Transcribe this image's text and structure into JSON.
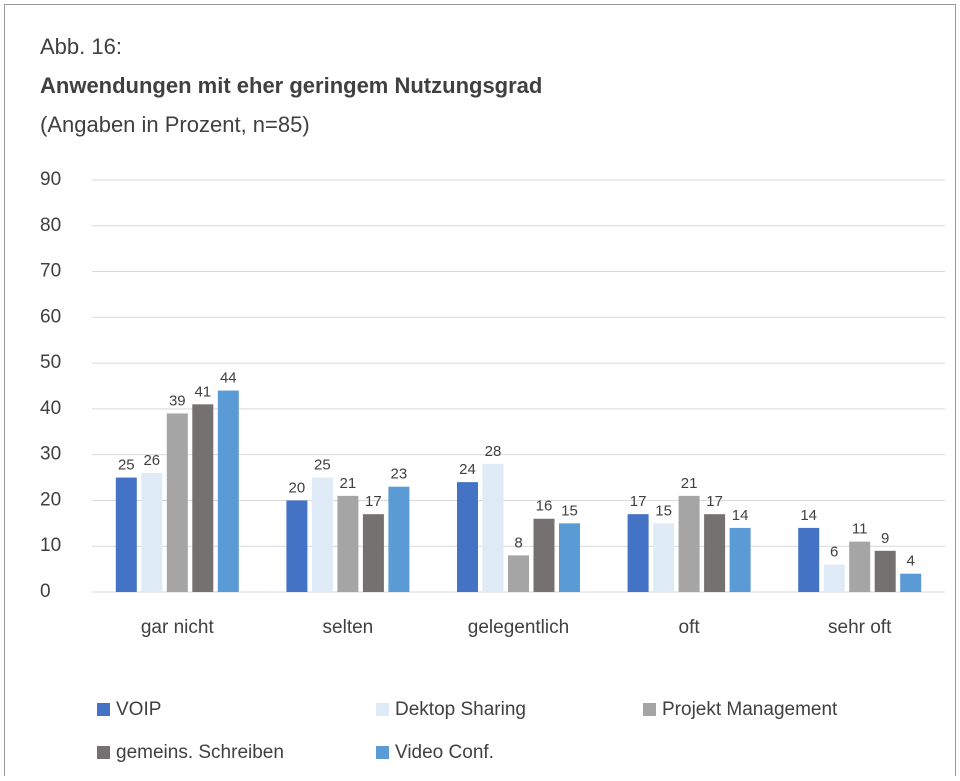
{
  "chart_data": {
    "type": "bar",
    "label": "Abb. 16:",
    "title": "Anwendungen mit eher geringem Nutzungsgrad",
    "subtitle": "(Angaben in Prozent, n=85)",
    "categories": [
      "gar nicht",
      "selten",
      "gelegentlich",
      "oft",
      "sehr oft"
    ],
    "series": [
      {
        "name": "VOIP",
        "color": "#4472c4",
        "values": [
          25,
          20,
          24,
          17,
          14
        ]
      },
      {
        "name": "Dektop Sharing",
        "color": "#deebf7",
        "values": [
          26,
          25,
          28,
          15,
          6
        ]
      },
      {
        "name": "Projekt Management",
        "color": "#a5a5a5",
        "values": [
          39,
          21,
          8,
          21,
          11
        ]
      },
      {
        "name": "gemeins. Schreiben",
        "color": "#767171",
        "values": [
          41,
          17,
          16,
          17,
          9
        ]
      },
      {
        "name": "Video Conf.",
        "color": "#5b9bd5",
        "values": [
          44,
          23,
          15,
          14,
          4
        ]
      }
    ],
    "ylim": [
      0,
      90
    ],
    "yticks": [
      0,
      10,
      20,
      30,
      40,
      50,
      60,
      70,
      80,
      90
    ],
    "grid": true,
    "legend": "bottom"
  }
}
